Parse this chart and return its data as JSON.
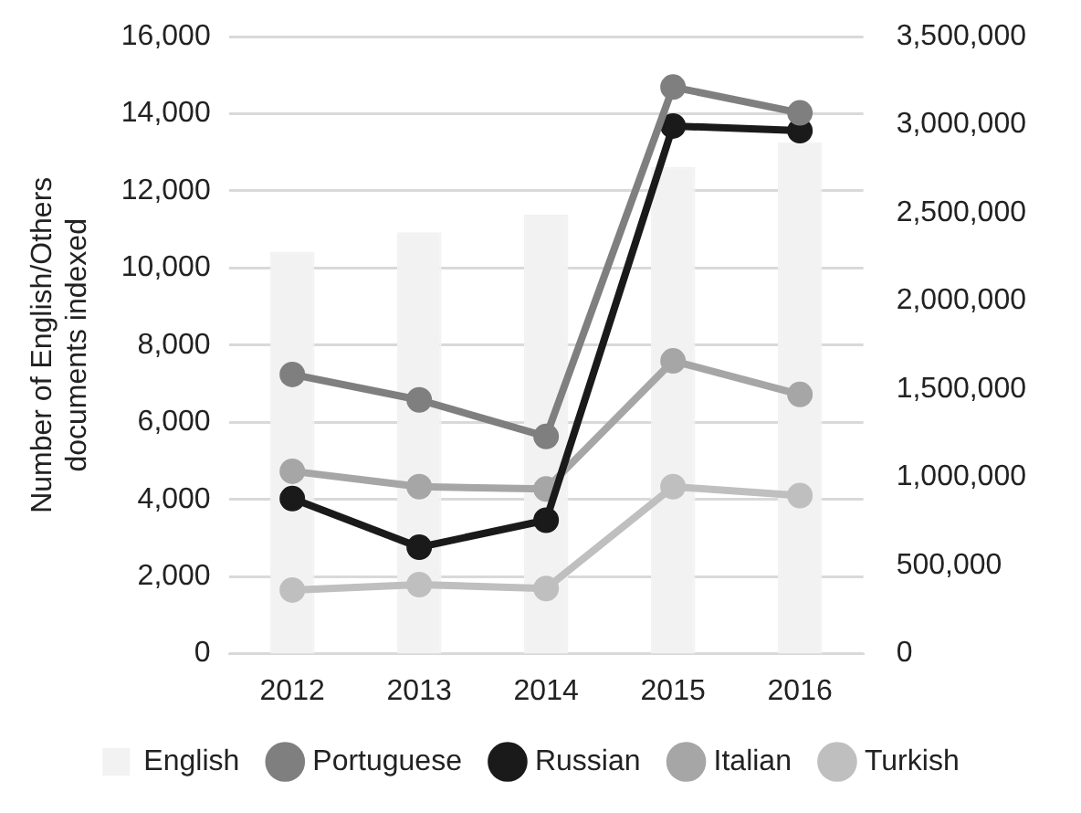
{
  "chart_data": {
    "type": "bar",
    "ylabel": "Number of English/Others documents indexed",
    "categories": [
      "2012",
      "2013",
      "2014",
      "2015",
      "2016"
    ],
    "series": [
      {
        "name": "English",
        "axis": "y2",
        "color": "#f2f2f2",
        "values": [
          2280000,
          2390000,
          2490000,
          2760000,
          2900000
        ]
      },
      {
        "name": "Portuguese",
        "type": "line",
        "color": "#7f7f7f",
        "values": [
          7240,
          6580,
          5630,
          14690,
          14020
        ]
      },
      {
        "name": "Russian",
        "type": "line",
        "color": "#1a1a1a",
        "values": [
          4020,
          2760,
          3460,
          13680,
          13560
        ]
      },
      {
        "name": "Italian",
        "type": "line",
        "color": "#a6a6a6",
        "values": [
          4730,
          4330,
          4270,
          7590,
          6720
        ]
      },
      {
        "name": "Turkish",
        "type": "line",
        "color": "#bfbfbf",
        "values": [
          1650,
          1790,
          1690,
          4330,
          4100
        ]
      }
    ],
    "ylim": [
      0,
      16000
    ],
    "yticks": [
      0,
      {
        "value": 2000,
        "label": "2,000"
      },
      {
        "value": 4000,
        "label": "4,000"
      },
      {
        "value": 6000,
        "label": "6,000"
      },
      {
        "value": 8000,
        "label": "8,000"
      },
      {
        "value": 10000,
        "label": "10,000"
      },
      {
        "value": 12000,
        "label": "12,000"
      },
      {
        "value": 14000,
        "label": "14,000"
      },
      {
        "value": 16000,
        "label": "16,000"
      }
    ],
    "y2lim": [
      0,
      3500000
    ],
    "y2ticks": [
      0,
      {
        "value": 500000,
        "label": "500,000"
      },
      {
        "value": 1000000,
        "label": "1,000,000"
      },
      {
        "value": 1500000,
        "label": "1,500,000"
      },
      {
        "value": 2000000,
        "label": "2,000,000"
      },
      {
        "value": 2500000,
        "label": "2,500,000"
      },
      {
        "value": 3000000,
        "label": "3,000,000"
      },
      {
        "value": 3500000,
        "label": "3,500,000"
      }
    ],
    "grid": "y",
    "legend": "bottom",
    "marker": "circle"
  }
}
